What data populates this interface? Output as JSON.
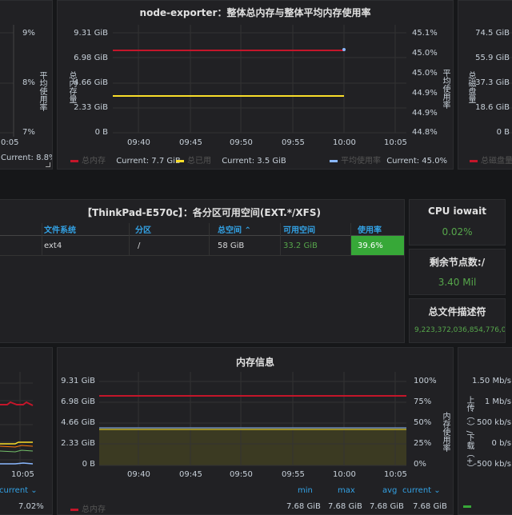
{
  "top_left": {
    "ticks": [
      "9%",
      "8%",
      "7%"
    ],
    "y_label": "平均使用率",
    "x_tick": "0:05",
    "current": "Current: 8.8%"
  },
  "mem_top": {
    "title": "node-exporter：整体总内存与整体平均内存使用率",
    "left_ticks": [
      "9.31 GiB",
      "6.98 GiB",
      "4.66 GiB",
      "2.33 GiB",
      "0 B"
    ],
    "right_ticks": [
      "45.1%",
      "45.0%",
      "45.0%",
      "44.9%",
      "44.9%",
      "44.8%"
    ],
    "left_label": "总内存量",
    "right_label": "平均使用率",
    "x_ticks": [
      "09:40",
      "09:45",
      "09:50",
      "09:55",
      "10:00",
      "10:05"
    ],
    "legend": [
      {
        "name": "总内存",
        "current": "Current: 7.7 GiB",
        "color": "#c4162a"
      },
      {
        "name": "总已用",
        "current": "Current: 3.5 GiB",
        "color": "#fade2a"
      },
      {
        "name": "平均使用率",
        "current": "Current: 45.0%",
        "color": "#8ab8ff"
      }
    ]
  },
  "top_right": {
    "ticks": [
      "74.5 GiB",
      "55.9 GiB",
      "37.3 GiB",
      "18.6 GiB",
      "0 B"
    ],
    "y_label": "总磁盘量",
    "legend_name": "总磁盘量"
  },
  "fs_table": {
    "title": "【ThinkPad-E570c】：各分区可用空间(EXT.*/XFS)",
    "headers": [
      "文件系统",
      "分区",
      "总空间 ⌃",
      "可用空间",
      "使用率"
    ],
    "row": [
      "ext4",
      "/",
      "58 GiB",
      "33.2 GiB",
      "39.6%"
    ]
  },
  "stats": {
    "iowait": {
      "title": "CPU iowait",
      "value": "0.02%"
    },
    "free_nodes": {
      "title": "剩余节点数:/",
      "value": "3.40 Mil"
    },
    "fd": {
      "title": "总文件描述符",
      "value": "9,223,372,036,854,776,0"
    }
  },
  "bottom_left": {
    "x_tick": "10:05",
    "current_header": "current ⌄",
    "current_value": "7.02%"
  },
  "mem_info": {
    "title": "内存信息",
    "left_ticks": [
      "9.31 GiB",
      "6.98 GiB",
      "4.66 GiB",
      "2.33 GiB",
      "0 B"
    ],
    "right_ticks": [
      "100%",
      "75%",
      "50%",
      "25%",
      "0%"
    ],
    "right_label": "内存使用率",
    "x_ticks": [
      "09:40",
      "09:45",
      "09:50",
      "09:55",
      "10:00",
      "10:05"
    ],
    "stat_headers": [
      "min",
      "max",
      "avg",
      "current ⌄"
    ],
    "legend_name": "总内存",
    "stat_values": [
      "7.68 GiB",
      "7.68 GiB",
      "7.68 GiB",
      "7.68 GiB"
    ]
  },
  "bottom_right": {
    "ticks": [
      "1.50 Mb/s",
      "1 Mb/s",
      "500 kb/s",
      "0 b/s",
      "-500 kb/s"
    ],
    "y_label": "上传（-）/下载（+）"
  },
  "colors": {
    "red": "#c4162a",
    "yellow": "#fade2a",
    "cyan": "#8ab8ff",
    "green": "#37a838",
    "olive": "#3b3a22"
  }
}
